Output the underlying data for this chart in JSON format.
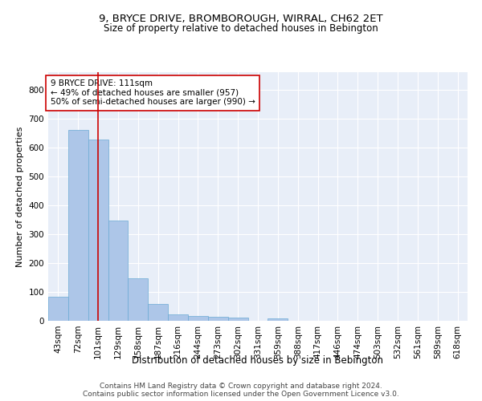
{
  "title1": "9, BRYCE DRIVE, BROMBOROUGH, WIRRAL, CH62 2ET",
  "title2": "Size of property relative to detached houses in Bebington",
  "xlabel": "Distribution of detached houses by size in Bebington",
  "ylabel": "Number of detached properties",
  "footer1": "Contains HM Land Registry data © Crown copyright and database right 2024.",
  "footer2": "Contains public sector information licensed under the Open Government Licence v3.0.",
  "bar_color": "#adc6e8",
  "bar_edge_color": "#6aaad4",
  "background_color": "#e8eef8",
  "grid_color": "#ffffff",
  "annotation_box_color": "#cc0000",
  "vline_color": "#cc0000",
  "categories": [
    "43sqm",
    "72sqm",
    "101sqm",
    "129sqm",
    "158sqm",
    "187sqm",
    "216sqm",
    "244sqm",
    "273sqm",
    "302sqm",
    "331sqm",
    "359sqm",
    "388sqm",
    "417sqm",
    "446sqm",
    "474sqm",
    "503sqm",
    "532sqm",
    "561sqm",
    "589sqm",
    "618sqm"
  ],
  "values": [
    82,
    660,
    628,
    348,
    147,
    57,
    22,
    18,
    14,
    10,
    0,
    8,
    0,
    0,
    0,
    0,
    0,
    0,
    0,
    0,
    0
  ],
  "property_label": "9 BRYCE DRIVE: 111sqm",
  "pct_smaller": 49,
  "n_smaller": 957,
  "pct_larger_semi": 50,
  "n_larger_semi": 990,
  "vline_index": 2.0,
  "ylim": [
    0,
    860
  ],
  "yticks": [
    0,
    100,
    200,
    300,
    400,
    500,
    600,
    700,
    800
  ],
  "title1_fontsize": 9.5,
  "title2_fontsize": 8.5,
  "ylabel_fontsize": 8,
  "xlabel_fontsize": 8.5,
  "tick_fontsize": 7.5,
  "annotation_fontsize": 7.5,
  "footer_fontsize": 6.5
}
